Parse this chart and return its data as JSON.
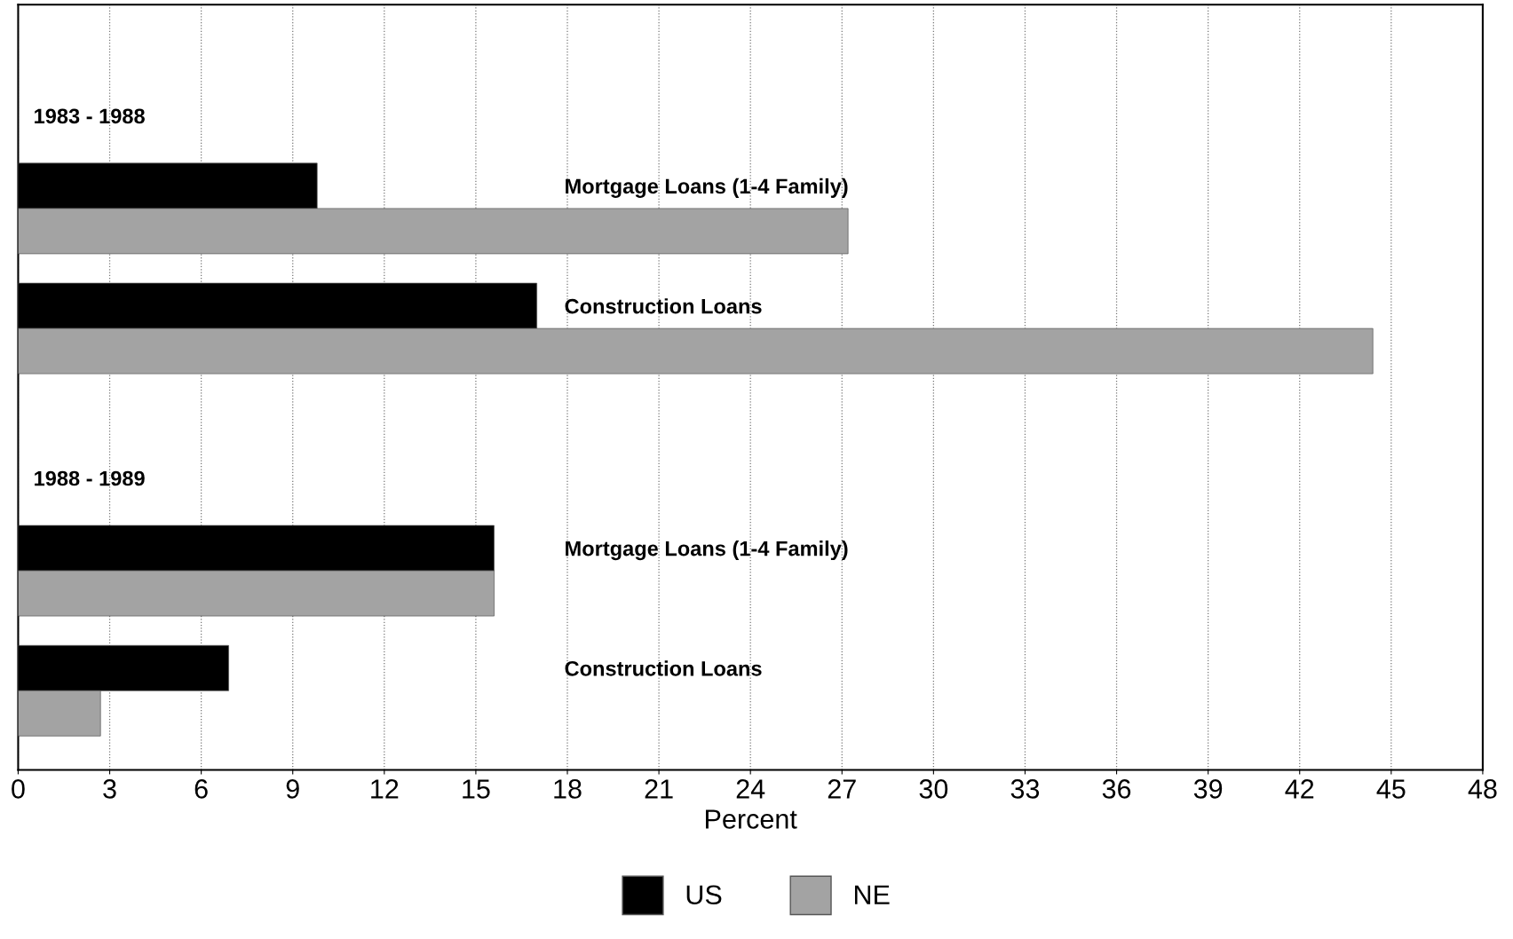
{
  "chart_data": {
    "type": "bar",
    "orientation": "horizontal",
    "categories": [
      "Mortgage Loans (1-4 Family)",
      "Construction Loans",
      "Mortgage Loans (1-4 Family)",
      "Construction Loans"
    ],
    "series": [
      {
        "name": "US",
        "color": "#000000",
        "values": [
          9.8,
          17.0,
          15.6,
          6.9
        ]
      },
      {
        "name": "NE",
        "color": "#a3a3a3",
        "values": [
          27.2,
          44.4,
          15.6,
          2.7
        ]
      }
    ],
    "annotations": [
      "1983 - 1988",
      "1988 - 1989"
    ],
    "xlabel": "Percent",
    "xlim": [
      0,
      48
    ],
    "xticks": [
      0,
      3,
      6,
      9,
      12,
      15,
      18,
      21,
      24,
      27,
      30,
      33,
      36,
      39,
      42,
      45,
      48
    ],
    "grid": "x",
    "legend": "bottom",
    "tick_labels": "x"
  }
}
